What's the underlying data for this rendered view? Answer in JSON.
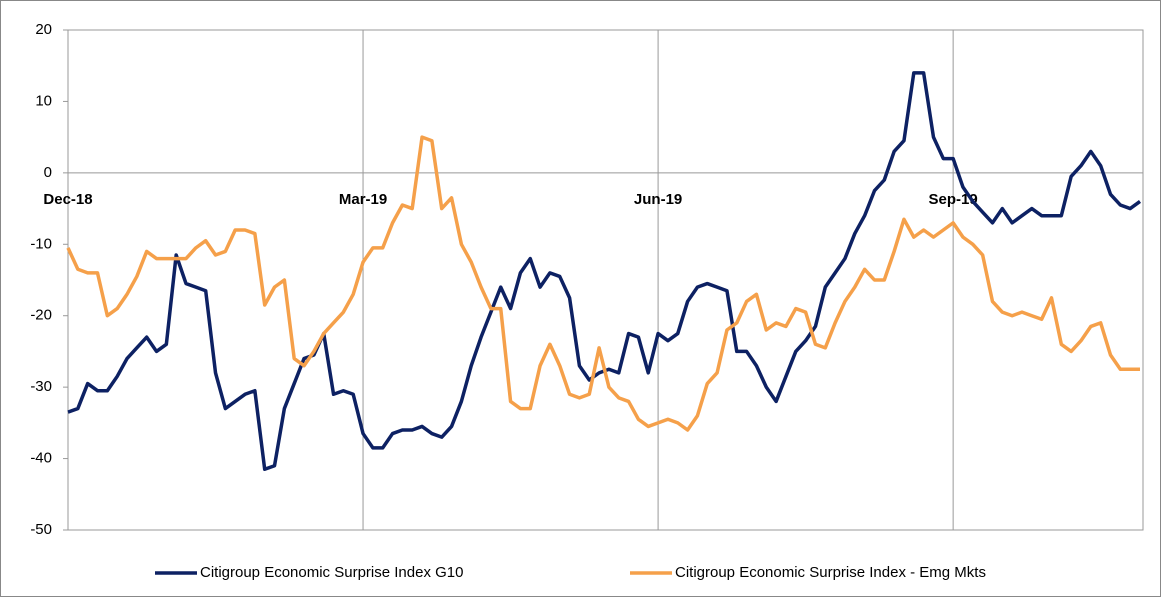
{
  "chart_data": {
    "type": "line",
    "categories": [
      "Dec-18",
      null,
      null,
      null,
      null,
      null,
      null,
      null,
      null,
      null,
      null,
      null,
      null,
      null,
      null,
      null,
      null,
      null,
      null,
      null,
      null,
      null,
      null,
      null,
      null,
      null,
      null,
      null,
      null,
      null,
      "Mar-19",
      null,
      null,
      null,
      null,
      null,
      null,
      null,
      null,
      null,
      null,
      null,
      null,
      null,
      null,
      null,
      null,
      null,
      null,
      null,
      null,
      null,
      null,
      null,
      null,
      null,
      null,
      null,
      null,
      null,
      "Jun-19",
      null,
      null,
      null,
      null,
      null,
      null,
      null,
      null,
      null,
      null,
      null,
      null,
      null,
      null,
      null,
      null,
      null,
      null,
      null,
      null,
      null,
      null,
      null,
      null,
      null,
      null,
      null,
      null,
      null,
      "Sep-19",
      null,
      null,
      null,
      null,
      null,
      null,
      null,
      null,
      null,
      null,
      null,
      null,
      null,
      null,
      null,
      null,
      null,
      null,
      null
    ],
    "series": [
      {
        "name": "Citigroup Economic Surprise Index G10",
        "color": "#0d2163",
        "values": [
          -33.5,
          -33,
          -29.5,
          -30.5,
          -30.5,
          -28.5,
          -26,
          -24.5,
          -23,
          -25,
          -24,
          -11.5,
          -15.5,
          -16,
          -16.5,
          -28,
          -33,
          -32,
          -31,
          -30.5,
          -41.5,
          -41,
          -33,
          -29.5,
          -26,
          -25.5,
          -22.5,
          -31,
          -30.5,
          -31,
          -36.5,
          -38.5,
          -38.5,
          -36.5,
          -36,
          -36,
          -35.5,
          -36.5,
          -37,
          -35.5,
          -32,
          -27,
          -23,
          -19.5,
          -16,
          -19,
          -14,
          -12,
          -16,
          -14,
          -14.5,
          -17.5,
          -27,
          -29,
          -28,
          -27.5,
          -28,
          -22.5,
          -23,
          -28,
          -22.5,
          -23.5,
          -22.5,
          -18,
          -16,
          -15.5,
          -16,
          -16.5,
          -25,
          -25,
          -27,
          -30,
          -32,
          -28.5,
          -25,
          -23.5,
          -21.5,
          -16,
          -14,
          -12,
          -8.5,
          -6,
          -2.5,
          -1,
          3,
          4.5,
          14,
          14,
          5,
          2,
          2,
          -2,
          -4,
          -5.5,
          -7,
          -5,
          -7,
          -6,
          -5,
          -6,
          -6,
          -6,
          -0.5,
          1,
          3,
          1,
          -3,
          -4.5,
          -5,
          -4
        ]
      },
      {
        "name": "Citigroup Economic Surprise Index - Emg Mkts",
        "color": "#f5a04a",
        "values": [
          -10.5,
          -13.5,
          -14,
          -14,
          -20,
          -19,
          -17,
          -14.5,
          -11,
          -12,
          -12,
          -12,
          -12,
          -10.5,
          -9.5,
          -11.5,
          -11,
          -8,
          -8,
          -8.5,
          -18.5,
          -16,
          -15,
          -26,
          -27,
          -25,
          -22.5,
          -21,
          -19.5,
          -17,
          -12.5,
          -10.5,
          -10.5,
          -7,
          -4.5,
          -5,
          5,
          4.5,
          -5,
          -3.5,
          -10,
          -12.5,
          -16,
          -19,
          -19,
          -32,
          -33,
          -33,
          -27,
          -24,
          -27,
          -31,
          -31.5,
          -31,
          -24.5,
          -30,
          -31.5,
          -32,
          -34.5,
          -35.5,
          -35,
          -34.5,
          -35,
          -36,
          -34,
          -29.5,
          -28,
          -22,
          -21,
          -18,
          -17,
          -22,
          -21,
          -21.5,
          -19,
          -19.5,
          -24,
          -24.5,
          -21,
          -18,
          -16,
          -13.5,
          -15,
          -15,
          -11,
          -6.5,
          -9,
          -8,
          -9,
          -8,
          -7,
          -9,
          -10,
          -11.5,
          -18,
          -19.5,
          -20,
          -19.5,
          -20,
          -20.5,
          -17.5,
          -24,
          -25,
          -23.5,
          -21.5,
          -21,
          -25.5,
          -27.5,
          -27.5,
          -27.5
        ]
      }
    ],
    "ylim": [
      -50,
      20
    ],
    "yticks": [
      -50,
      -40,
      -30,
      -20,
      -10,
      0,
      10,
      20
    ],
    "grid": true,
    "legend": "bottom"
  }
}
